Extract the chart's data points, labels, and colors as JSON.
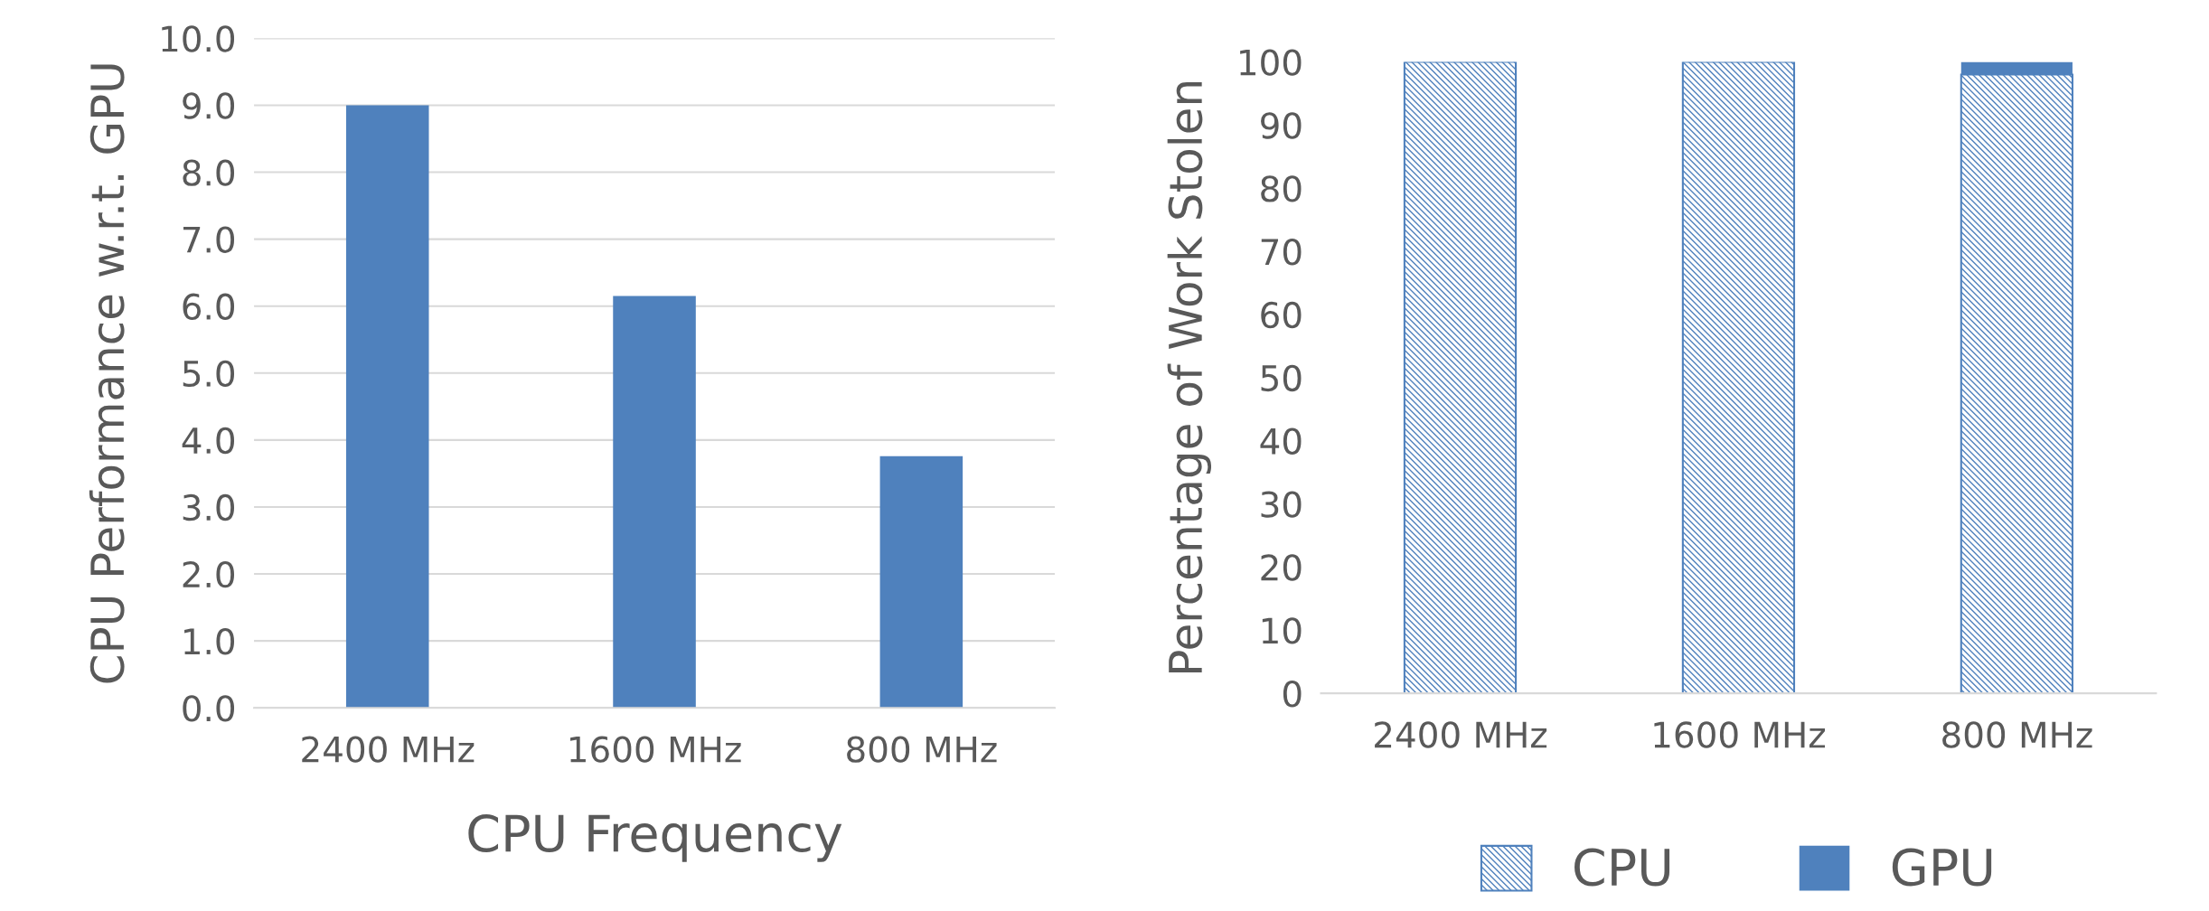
{
  "chart_data": [
    {
      "type": "bar",
      "categories": [
        "2400 MHz",
        "1600 MHz",
        "800 MHz"
      ],
      "values": [
        9.0,
        6.15,
        3.76
      ],
      "color": "#4f81bd",
      "ylabel": "CPU Performance w.r.t. GPU",
      "xlabel": "CPU Frequency",
      "ylim": [
        0,
        10
      ],
      "yticks": [
        {
          "value": 0,
          "label": "0.0"
        },
        {
          "value": 1,
          "label": "1.0"
        },
        {
          "value": 2,
          "label": "2.0"
        },
        {
          "value": 3,
          "label": "3.0"
        },
        {
          "value": 4,
          "label": "4.0"
        },
        {
          "value": 5,
          "label": "5.0"
        },
        {
          "value": 6,
          "label": "6.0"
        },
        {
          "value": 7,
          "label": "7.0"
        },
        {
          "value": 8,
          "label": "8.0"
        },
        {
          "value": 9,
          "label": "9.0"
        },
        {
          "value": 10,
          "label": "10.0"
        }
      ],
      "grid": "y"
    },
    {
      "type": "bar",
      "stacked": true,
      "categories": [
        "2400 MHz",
        "1600 MHz",
        "800 MHz"
      ],
      "series": [
        {
          "name": "CPU",
          "color": "#4f81bd",
          "values": [
            100,
            100,
            98
          ]
        },
        {
          "name": "GPU",
          "color": "#4f81bd",
          "values": [
            0,
            0,
            2
          ]
        }
      ],
      "ylabel": "Percentage of Work Stolen",
      "ylim": [
        0,
        100
      ],
      "yticks": [
        0,
        10,
        20,
        30,
        40,
        50,
        60,
        70,
        80,
        90,
        100
      ],
      "legend": "bottom"
    }
  ]
}
